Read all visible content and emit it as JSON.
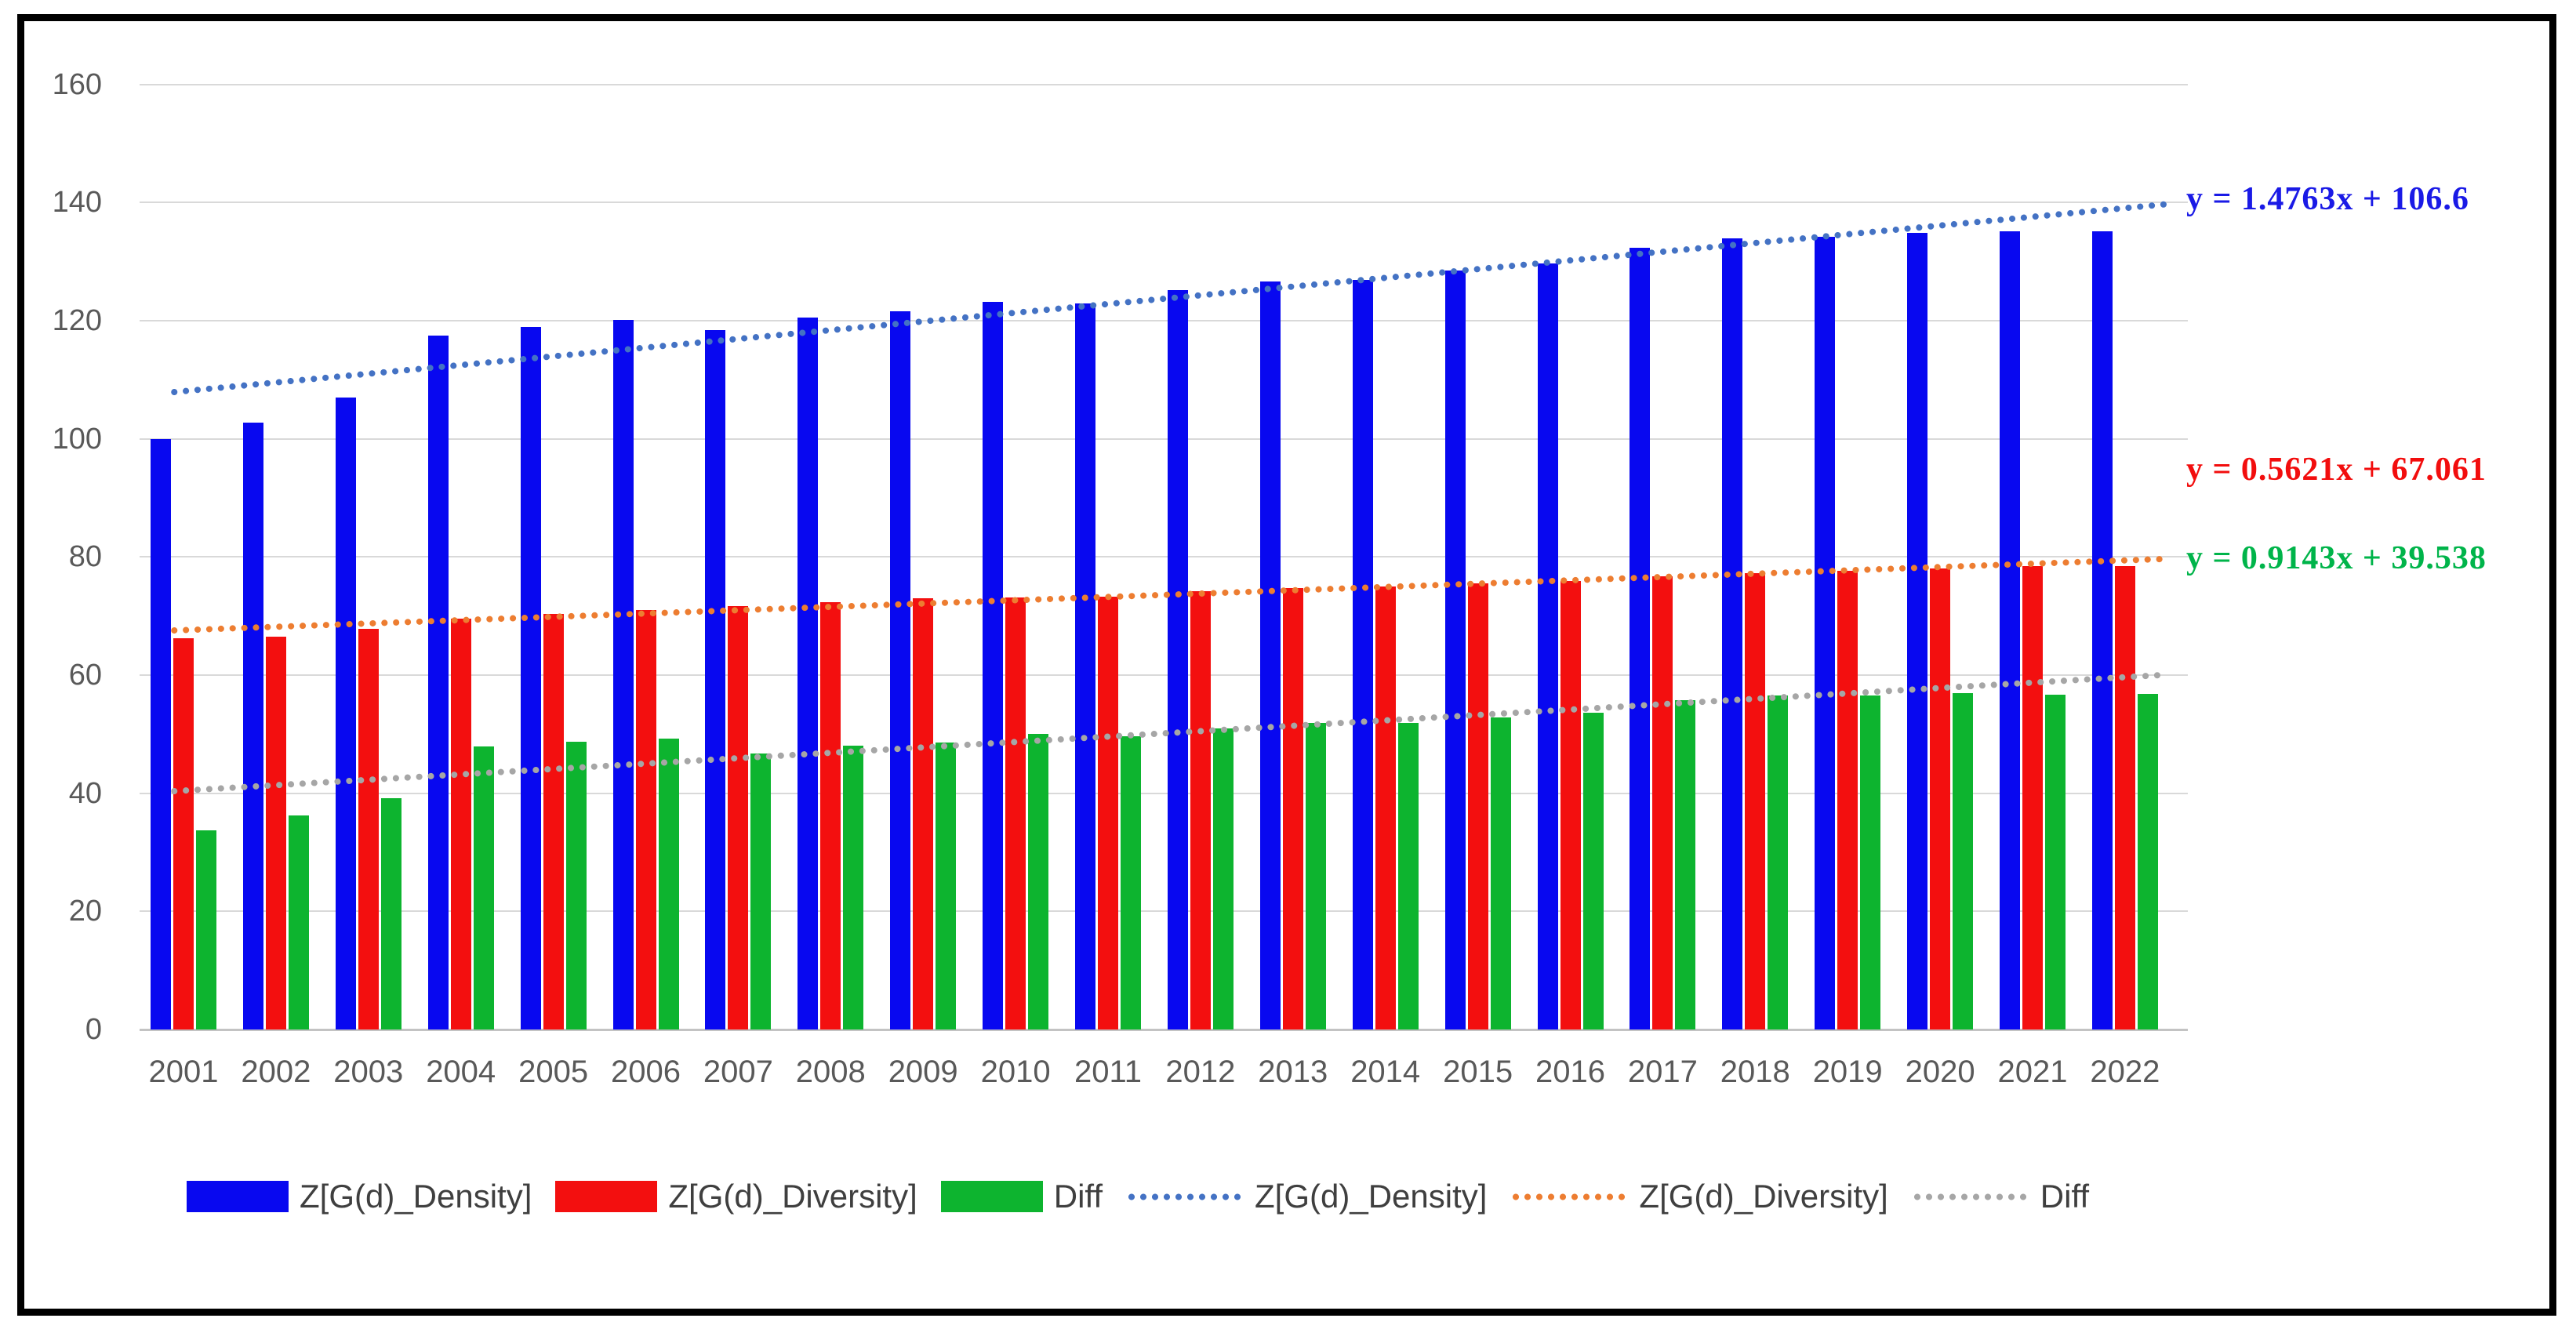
{
  "chart_data": {
    "type": "bar",
    "title": "",
    "xlabel": "",
    "ylabel": "",
    "ylim": [
      0,
      160
    ],
    "ytick_step": 20,
    "grid": true,
    "legend_position": "bottom",
    "categories": [
      "2001",
      "2002",
      "2003",
      "2004",
      "2005",
      "2006",
      "2007",
      "2008",
      "2009",
      "2010",
      "2011",
      "2012",
      "2013",
      "2014",
      "2015",
      "2016",
      "2017",
      "2018",
      "2019",
      "2020",
      "2021",
      "2022"
    ],
    "series": [
      {
        "name": "Z[G(d)_Density]",
        "type": "bar",
        "color": "#0808f0",
        "values": [
          100.0,
          102.7,
          107.0,
          117.5,
          119.0,
          120.2,
          118.4,
          120.5,
          121.6,
          123.2,
          123.0,
          125.2,
          126.6,
          126.9,
          128.5,
          129.7,
          132.4,
          133.9,
          134.2,
          134.9,
          135.2,
          135.2
        ]
      },
      {
        "name": "Z[G(d)_Diversity]",
        "type": "bar",
        "color": "#f30f0f",
        "values": [
          66.3,
          66.5,
          67.8,
          69.6,
          70.3,
          71.0,
          71.7,
          72.4,
          73.0,
          73.2,
          73.3,
          74.2,
          74.7,
          75.0,
          75.6,
          76.0,
          76.7,
          77.3,
          77.7,
          78.0,
          78.5,
          78.4
        ]
      },
      {
        "name": "Diff",
        "type": "bar",
        "color": "#0db42f",
        "values": [
          33.7,
          36.2,
          39.2,
          47.9,
          48.7,
          49.2,
          46.7,
          48.1,
          48.6,
          50.0,
          49.7,
          51.0,
          51.9,
          51.9,
          52.9,
          53.7,
          55.7,
          56.6,
          56.5,
          56.9,
          56.7,
          56.8
        ]
      },
      {
        "name": "Z[G(d)_Density]",
        "type": "trendline",
        "color": "#4472c4",
        "slope": 1.4763,
        "intercept": 106.6,
        "equation": "y = 1.4763x + 106.6",
        "equation_color": "#1a1ae6"
      },
      {
        "name": "Z[G(d)_Diversity]",
        "type": "trendline",
        "color": "#ed7d31",
        "slope": 0.5621,
        "intercept": 67.061,
        "equation": "y = 0.5621x + 67.061",
        "equation_color": "#f20d0d"
      },
      {
        "name": "Diff",
        "type": "trendline",
        "color": "#a6a6a6",
        "slope": 0.9143,
        "intercept": 39.538,
        "equation": "y = 0.9143x + 39.538",
        "equation_color": "#00b44a"
      }
    ]
  }
}
